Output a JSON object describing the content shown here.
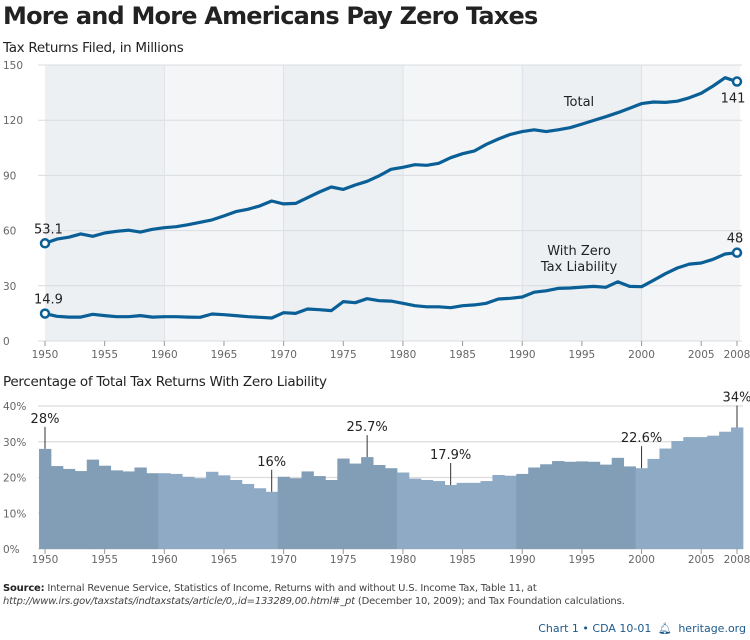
{
  "title": "More and More Americans Pay Zero Taxes",
  "source": {
    "label": "Source:",
    "text_1": " Internal Revenue Service, Statistics of Income, Returns with and without U.S. Income Tax, Table 11, at ",
    "url": "http://www.irs.gov/taxstats/indtaxstats/article/0,,id=133289,00.html#_pt",
    "text_2": " (December 10, 2009); and Tax Foundation calculations."
  },
  "footer": {
    "chart_id": "Chart 1 • CDA 10-01",
    "icon": "liberty-bell-icon",
    "site": "heritage.org"
  },
  "colors": {
    "line": "#0a5f96",
    "band_dark": "#ecf0f3",
    "band_light": "#f4f5f7",
    "bar_dark": "#829db6",
    "bar_light": "#8eaac5",
    "grid": "#d9dcdf"
  },
  "chart_data": [
    {
      "type": "line",
      "title": "Tax Returns Filed, in Millions",
      "xlabel": "",
      "ylabel": "",
      "xlim": [
        1950,
        2008
      ],
      "ylim": [
        0,
        150
      ],
      "yticks": [
        0,
        30,
        60,
        90,
        120,
        150
      ],
      "xticks": [
        1950,
        1955,
        1960,
        1965,
        1970,
        1975,
        1980,
        1985,
        1990,
        1995,
        2000,
        2005,
        2008
      ],
      "grid": true,
      "x": [
        1950,
        1951,
        1952,
        1953,
        1954,
        1955,
        1956,
        1957,
        1958,
        1959,
        1960,
        1961,
        1962,
        1963,
        1964,
        1965,
        1966,
        1967,
        1968,
        1969,
        1970,
        1971,
        1972,
        1973,
        1974,
        1975,
        1976,
        1977,
        1978,
        1979,
        1980,
        1981,
        1982,
        1983,
        1984,
        1985,
        1986,
        1987,
        1988,
        1989,
        1990,
        1991,
        1992,
        1993,
        1994,
        1995,
        1996,
        1997,
        1998,
        1999,
        2000,
        2001,
        2002,
        2003,
        2004,
        2005,
        2006,
        2007,
        2008
      ],
      "series": [
        {
          "name": "Total",
          "label_lines": [
            "Total"
          ],
          "values": [
            53.1,
            55.4,
            56.4,
            58.2,
            56.9,
            58.7,
            59.6,
            60.2,
            59.2,
            60.7,
            61.6,
            62.1,
            63.2,
            64.5,
            65.8,
            68.0,
            70.3,
            71.6,
            73.4,
            76.1,
            74.5,
            74.8,
            77.9,
            81.0,
            83.7,
            82.4,
            84.8,
            86.8,
            89.8,
            93.3,
            94.4,
            95.8,
            95.5,
            96.6,
            99.6,
            101.8,
            103.3,
            106.9,
            109.8,
            112.3,
            113.8,
            114.8,
            113.8,
            114.8,
            115.9,
            117.9,
            119.9,
            121.9,
            124.1,
            126.5,
            129.0,
            129.9,
            129.7,
            130.3,
            132.2,
            134.6,
            138.6,
            143.1,
            141
          ],
          "start_label": "53.1",
          "end_label": "141"
        },
        {
          "name": "With Zero Tax Liability",
          "label_lines": [
            "With Zero",
            "Tax Liability"
          ],
          "values": [
            14.9,
            13.4,
            13.0,
            13.0,
            14.5,
            13.8,
            13.2,
            13.2,
            13.8,
            13.0,
            13.2,
            13.2,
            13.0,
            12.9,
            14.7,
            14.3,
            13.8,
            13.2,
            12.9,
            12.5,
            15.4,
            15.0,
            17.4,
            17.0,
            16.5,
            21.4,
            20.8,
            23.0,
            21.9,
            21.7,
            20.5,
            19.2,
            18.6,
            18.6,
            18.1,
            19.2,
            19.6,
            20.5,
            22.8,
            23.2,
            23.9,
            26.5,
            27.3,
            28.6,
            28.8,
            29.3,
            29.7,
            29.2,
            32.2,
            29.7,
            29.5,
            33.0,
            36.6,
            39.7,
            41.8,
            42.4,
            44.4,
            47.3,
            48
          ],
          "start_label": "14.9",
          "end_label": "48"
        }
      ]
    },
    {
      "type": "bar",
      "title": "Percentage of Total Tax Returns With Zero Liability",
      "xlabel": "",
      "ylabel": "",
      "ylim": [
        0,
        40
      ],
      "yticks": [
        "0%",
        "10%",
        "20%",
        "30%",
        "40%"
      ],
      "xticks": [
        1950,
        1955,
        1960,
        1965,
        1970,
        1975,
        1980,
        1985,
        1990,
        1995,
        2000,
        2005,
        2008
      ],
      "grid": true,
      "categories": [
        1950,
        1951,
        1952,
        1953,
        1954,
        1955,
        1956,
        1957,
        1958,
        1959,
        1960,
        1961,
        1962,
        1963,
        1964,
        1965,
        1966,
        1967,
        1968,
        1969,
        1970,
        1971,
        1972,
        1973,
        1974,
        1975,
        1976,
        1977,
        1978,
        1979,
        1980,
        1981,
        1982,
        1983,
        1984,
        1985,
        1986,
        1987,
        1988,
        1989,
        1990,
        1991,
        1992,
        1993,
        1994,
        1995,
        1996,
        1997,
        1998,
        1999,
        2000,
        2001,
        2002,
        2003,
        2004,
        2005,
        2006,
        2007,
        2008
      ],
      "values": [
        28,
        23.2,
        22.4,
        21.8,
        25.0,
        23.3,
        22.0,
        21.7,
        22.8,
        21.2,
        21.2,
        21.0,
        20.2,
        19.8,
        21.6,
        20.6,
        19.3,
        18.2,
        17.0,
        16,
        20.2,
        19.8,
        21.7,
        20.4,
        19.3,
        25.3,
        23.9,
        25.7,
        23.5,
        22.6,
        21.4,
        19.7,
        19.3,
        19.0,
        17.9,
        18.5,
        18.5,
        19.0,
        20.7,
        20.5,
        21.0,
        22.8,
        23.7,
        24.6,
        24.4,
        24.5,
        24.4,
        23.6,
        25.5,
        23.1,
        22.6,
        25.2,
        28.1,
        30.2,
        31.3,
        31.3,
        31.7,
        32.8,
        34
      ],
      "annotations": [
        {
          "year": 1950,
          "label": "28%"
        },
        {
          "year": 1969,
          "label": "16%"
        },
        {
          "year": 1977,
          "label": "25.7%"
        },
        {
          "year": 1984,
          "label": "17.9%"
        },
        {
          "year": 2000,
          "label": "22.6%"
        },
        {
          "year": 2008,
          "label": "34%"
        }
      ]
    }
  ]
}
